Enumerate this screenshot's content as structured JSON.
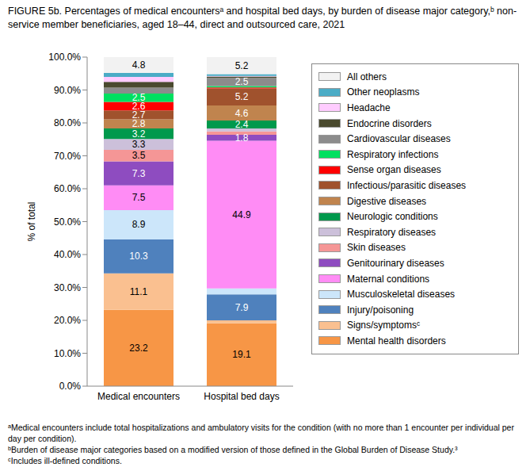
{
  "chart_data": {
    "type": "bar",
    "title": "FIGURE 5b. Percentages of medical encountersᵃ and hospital bed days, by burden of disease major category,ᵇ non-service member beneficiaries, aged 18–44, direct and outsourced care, 2021",
    "y_label": "% of total",
    "categories": [
      "Medical encounters",
      "Hospital bed days"
    ],
    "stacked": true,
    "grid": false,
    "legend": "right",
    "data_labels": true,
    "ylim": [
      0,
      100
    ],
    "yticks": [
      {
        "value": 0,
        "label": "0.0%"
      },
      {
        "value": 10,
        "label": "10.0%"
      },
      {
        "value": 20,
        "label": "20.0%"
      },
      {
        "value": 30,
        "label": "30.0%"
      },
      {
        "value": 40,
        "label": "40.0%"
      },
      {
        "value": 50,
        "label": "50.0%"
      },
      {
        "value": 60,
        "label": "60.0%"
      },
      {
        "value": 70,
        "label": "70.0%"
      },
      {
        "value": 80,
        "label": "80.0%"
      },
      {
        "value": 90,
        "label": "90.0%"
      },
      {
        "value": 100,
        "label": "100.0%"
      }
    ],
    "series": [
      {
        "name": "Mental health disorders",
        "color": "#F79646",
        "values": [
          23.2,
          19.1
        ],
        "value_labels": [
          "23.2",
          "19.1"
        ]
      },
      {
        "name": "Signs/symptomsᶜ",
        "color": "#FAC090",
        "values": [
          11.1,
          0.9
        ],
        "value_labels": [
          "11.1",
          null
        ]
      },
      {
        "name": "Injury/poisoning",
        "color": "#4F81BD",
        "values": [
          10.3,
          7.9
        ],
        "value_labels": [
          "10.3",
          "7.9"
        ]
      },
      {
        "name": "Musculoskeletal diseases",
        "color": "#CCE6FA",
        "values": [
          8.9,
          1.8
        ],
        "value_labels": [
          "8.9",
          null
        ]
      },
      {
        "name": "Maternal conditions",
        "color": "#FF8CF5",
        "values": [
          7.5,
          44.9
        ],
        "value_labels": [
          "7.5",
          "44.9"
        ]
      },
      {
        "name": "Genitourinary diseases",
        "color": "#8E4CC0",
        "values": [
          7.3,
          1.8
        ],
        "value_labels": [
          "7.3",
          "1.8"
        ]
      },
      {
        "name": "Skin diseases",
        "color": "#F59696",
        "values": [
          3.5,
          1.0
        ],
        "value_labels": [
          "3.5",
          null
        ]
      },
      {
        "name": "Respiratory diseases",
        "color": "#CCC0DA",
        "values": [
          3.3,
          0.9
        ],
        "value_labels": [
          "3.3",
          null
        ]
      },
      {
        "name": "Neurologic conditions",
        "color": "#00994C",
        "values": [
          3.2,
          2.4
        ],
        "value_labels": [
          "3.2",
          "2.4"
        ]
      },
      {
        "name": "Digestive diseases",
        "color": "#C0844E",
        "values": [
          2.8,
          4.6
        ],
        "value_labels": [
          "2.8",
          "4.6"
        ]
      },
      {
        "name": "Infectious/parasitic diseases",
        "color": "#A0522D",
        "values": [
          2.7,
          5.2
        ],
        "value_labels": [
          "2.7",
          "5.2"
        ]
      },
      {
        "name": "Sense organ diseases",
        "color": "#FF0000",
        "values": [
          2.6,
          0.3
        ],
        "value_labels": [
          "2.6",
          null
        ]
      },
      {
        "name": "Respiratory infections",
        "color": "#00E060",
        "values": [
          2.5,
          0.4
        ],
        "value_labels": [
          "2.5",
          null
        ]
      },
      {
        "name": "Cardiovascular diseases",
        "color": "#8C8C8C",
        "values": [
          1.8,
          2.5
        ],
        "value_labels": [
          null,
          "2.5"
        ]
      },
      {
        "name": "Endocrine disorders",
        "color": "#4A4A2E",
        "values": [
          1.8,
          0.4
        ],
        "value_labels": [
          null,
          null
        ]
      },
      {
        "name": "Headache",
        "color": "#FFCCFF",
        "values": [
          1.5,
          0.2
        ],
        "value_labels": [
          null,
          null
        ]
      },
      {
        "name": "Other neoplasms",
        "color": "#4BACC6",
        "values": [
          1.2,
          0.5
        ],
        "value_labels": [
          null,
          null
        ]
      },
      {
        "name": "All others",
        "color": "#F2F2F2",
        "values": [
          4.8,
          5.2
        ],
        "value_labels": [
          "4.8",
          "5.2"
        ]
      }
    ],
    "notes": [
      "ᵃMedical encounters include total hospitalizations and ambulatory visits for the condition (with no more than 1 encounter per individual per day per condition).",
      "ᵇBurden of disease major categories based on a modified version of those defined in the Global Burden of Disease Study.³",
      "ᶜIncludes ill-defined conditions."
    ]
  }
}
